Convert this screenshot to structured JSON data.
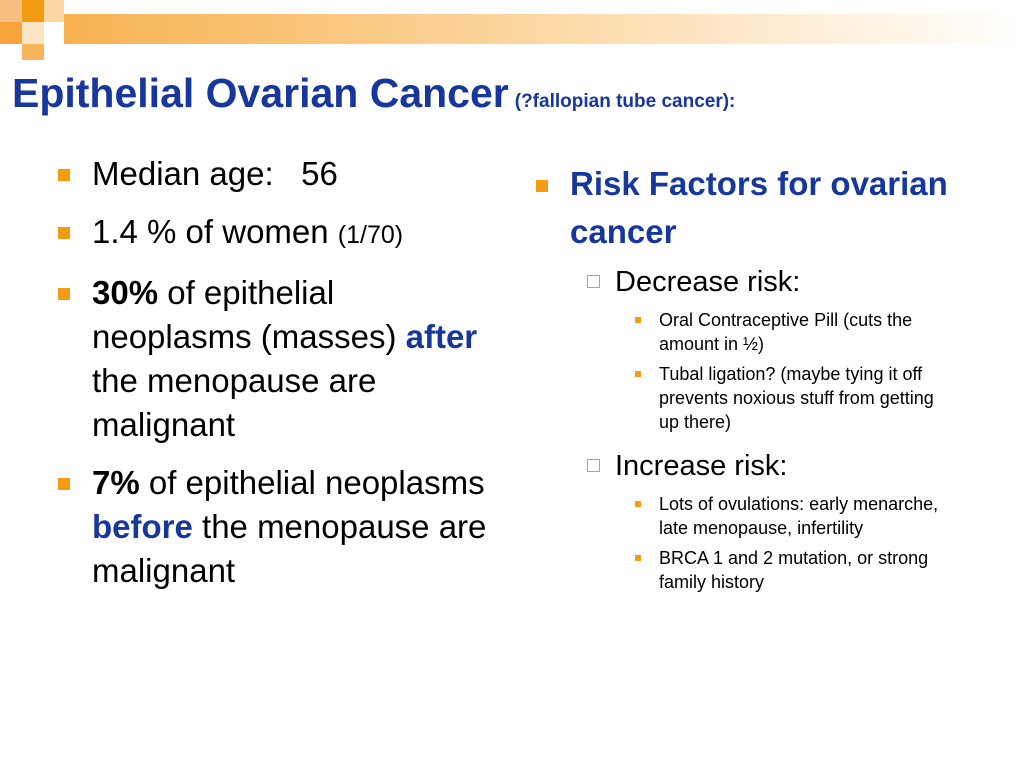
{
  "title": {
    "main": "Epithelial Ovarian Cancer",
    "sub": "(?fallopian tube cancer):"
  },
  "left": {
    "b1": {
      "text": "Median age:   56"
    },
    "b2": {
      "text": "1.4 % of women ",
      "paren": "(1/70)"
    },
    "b3": {
      "bold": "30%",
      "t1": " of epithelial neoplasms (masses) ",
      "em": "after",
      "t2": " the menopause are malignant"
    },
    "b4": {
      "bold": "7%",
      "t1": " of epithelial neoplasms ",
      "em": "before",
      "t2": " the menopause are malignant"
    }
  },
  "right": {
    "heading": "Risk Factors for ovarian cancer",
    "decrease": {
      "label": "Decrease risk:",
      "items": [
        "Oral Contraceptive Pill (cuts the amount in ½)",
        "Tubal ligation? (maybe tying it off prevents noxious stuff from getting up there)"
      ]
    },
    "increase": {
      "label": "Increase risk:",
      "items": [
        "Lots of ovulations: early menarche, late menopause, infertility",
        "BRCA 1 and 2 mutation, or strong family history"
      ]
    }
  },
  "colors": {
    "accent": "#f39c12",
    "title_blue": "#17379c"
  }
}
